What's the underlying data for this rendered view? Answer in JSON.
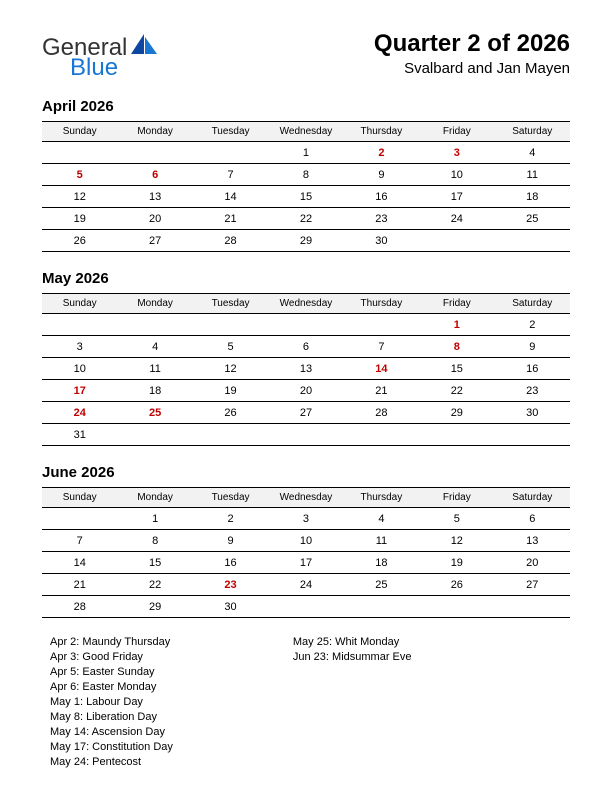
{
  "logo": {
    "word1": "General",
    "word2": "Blue",
    "color1": "#333333",
    "color2": "#1976d2"
  },
  "title": "Quarter 2 of 2026",
  "subtitle": "Svalbard and Jan Mayen",
  "weekdays": [
    "Sunday",
    "Monday",
    "Tuesday",
    "Wednesday",
    "Thursday",
    "Friday",
    "Saturday"
  ],
  "months": [
    {
      "name": "April 2026",
      "rows": [
        [
          null,
          null,
          null,
          {
            "d": 1
          },
          {
            "d": 2,
            "h": true
          },
          {
            "d": 3,
            "h": true
          },
          {
            "d": 4
          }
        ],
        [
          {
            "d": 5,
            "h": true
          },
          {
            "d": 6,
            "h": true
          },
          {
            "d": 7
          },
          {
            "d": 8
          },
          {
            "d": 9
          },
          {
            "d": 10
          },
          {
            "d": 11
          }
        ],
        [
          {
            "d": 12
          },
          {
            "d": 13
          },
          {
            "d": 14
          },
          {
            "d": 15
          },
          {
            "d": 16
          },
          {
            "d": 17
          },
          {
            "d": 18
          }
        ],
        [
          {
            "d": 19
          },
          {
            "d": 20
          },
          {
            "d": 21
          },
          {
            "d": 22
          },
          {
            "d": 23
          },
          {
            "d": 24
          },
          {
            "d": 25
          }
        ],
        [
          {
            "d": 26
          },
          {
            "d": 27
          },
          {
            "d": 28
          },
          {
            "d": 29
          },
          {
            "d": 30
          },
          null,
          null
        ]
      ]
    },
    {
      "name": "May 2026",
      "rows": [
        [
          null,
          null,
          null,
          null,
          null,
          {
            "d": 1,
            "h": true
          },
          {
            "d": 2
          }
        ],
        [
          {
            "d": 3
          },
          {
            "d": 4
          },
          {
            "d": 5
          },
          {
            "d": 6
          },
          {
            "d": 7
          },
          {
            "d": 8,
            "h": true
          },
          {
            "d": 9
          }
        ],
        [
          {
            "d": 10
          },
          {
            "d": 11
          },
          {
            "d": 12
          },
          {
            "d": 13
          },
          {
            "d": 14,
            "h": true
          },
          {
            "d": 15
          },
          {
            "d": 16
          }
        ],
        [
          {
            "d": 17,
            "h": true
          },
          {
            "d": 18
          },
          {
            "d": 19
          },
          {
            "d": 20
          },
          {
            "d": 21
          },
          {
            "d": 22
          },
          {
            "d": 23
          }
        ],
        [
          {
            "d": 24,
            "h": true
          },
          {
            "d": 25,
            "h": true
          },
          {
            "d": 26
          },
          {
            "d": 27
          },
          {
            "d": 28
          },
          {
            "d": 29
          },
          {
            "d": 30
          }
        ],
        [
          {
            "d": 31
          },
          null,
          null,
          null,
          null,
          null,
          null
        ]
      ]
    },
    {
      "name": "June 2026",
      "rows": [
        [
          null,
          {
            "d": 1
          },
          {
            "d": 2
          },
          {
            "d": 3
          },
          {
            "d": 4
          },
          {
            "d": 5
          },
          {
            "d": 6
          }
        ],
        [
          {
            "d": 7
          },
          {
            "d": 8
          },
          {
            "d": 9
          },
          {
            "d": 10
          },
          {
            "d": 11
          },
          {
            "d": 12
          },
          {
            "d": 13
          }
        ],
        [
          {
            "d": 14
          },
          {
            "d": 15
          },
          {
            "d": 16
          },
          {
            "d": 17
          },
          {
            "d": 18
          },
          {
            "d": 19
          },
          {
            "d": 20
          }
        ],
        [
          {
            "d": 21
          },
          {
            "d": 22
          },
          {
            "d": 23,
            "h": true
          },
          {
            "d": 24
          },
          {
            "d": 25
          },
          {
            "d": 26
          },
          {
            "d": 27
          }
        ],
        [
          {
            "d": 28
          },
          {
            "d": 29
          },
          {
            "d": 30
          },
          null,
          null,
          null,
          null
        ]
      ]
    }
  ],
  "holiday_list": {
    "col1": [
      "Apr 2: Maundy Thursday",
      "Apr 3: Good Friday",
      "Apr 5: Easter Sunday",
      "Apr 6: Easter Monday",
      "May 1: Labour Day",
      "May 8: Liberation Day",
      "May 14: Ascension Day",
      "May 17: Constitution Day",
      "May 24: Pentecost"
    ],
    "col2": [
      "May 25: Whit Monday",
      "Jun 23: Midsummar Eve"
    ]
  },
  "style": {
    "holiday_color": "#c00000",
    "header_bg": "#f2f2f2",
    "border_color": "#000000",
    "font_header": 10,
    "font_cell": 11,
    "font_month": 15,
    "font_title": 24
  }
}
